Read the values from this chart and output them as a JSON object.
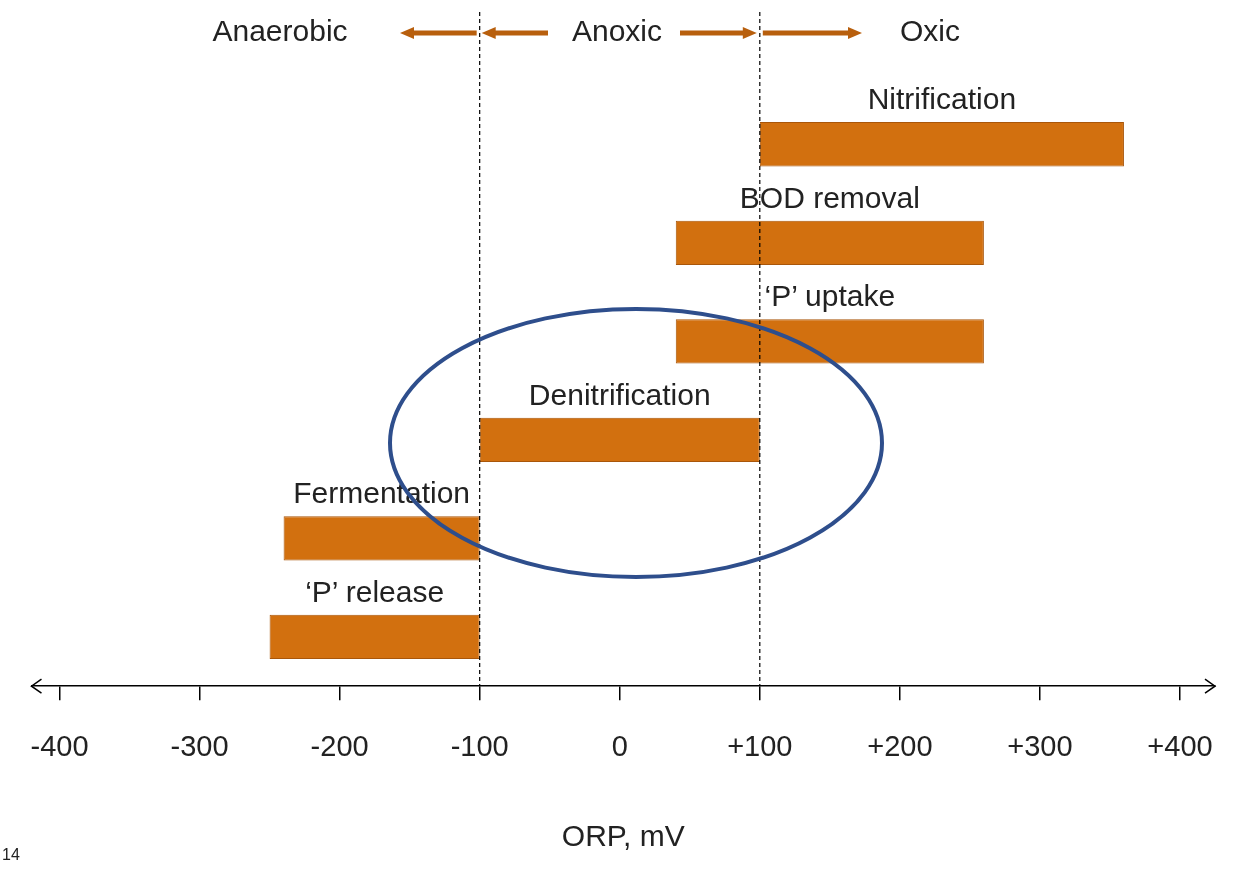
{
  "chart_data": {
    "type": "bar",
    "orientation": "horizontal",
    "xlabel": "ORP, mV",
    "categories": [
      "Nitrification",
      "BOD removal",
      "‘P’ uptake",
      "Denitrification",
      "Fermentation",
      "‘P’ release"
    ],
    "base": [
      100,
      40,
      40,
      -100,
      -240,
      -250
    ],
    "values": [
      260,
      220,
      220,
      200,
      140,
      150
    ],
    "color": "#d2700f",
    "xlim": [
      -420,
      425
    ],
    "xticks": [
      -400,
      -300,
      -200,
      -100,
      0,
      {
        "value": 100,
        "label": "+100"
      },
      {
        "value": 200,
        "label": "+200"
      },
      {
        "value": 300,
        "label": "+300"
      },
      {
        "value": 400,
        "label": "+400"
      }
    ],
    "tick_labels": "x",
    "grid": false,
    "legend": false,
    "ref_lines": [
      {
        "axis": "x",
        "value": -100,
        "line_style": "dashed",
        "color": "#000000"
      },
      {
        "axis": "x",
        "value": 100,
        "line_style": "dashed",
        "color": "#000000"
      }
    ],
    "annotations": [
      "Anaerobic",
      "Anoxic",
      "Oxic",
      "14"
    ]
  }
}
